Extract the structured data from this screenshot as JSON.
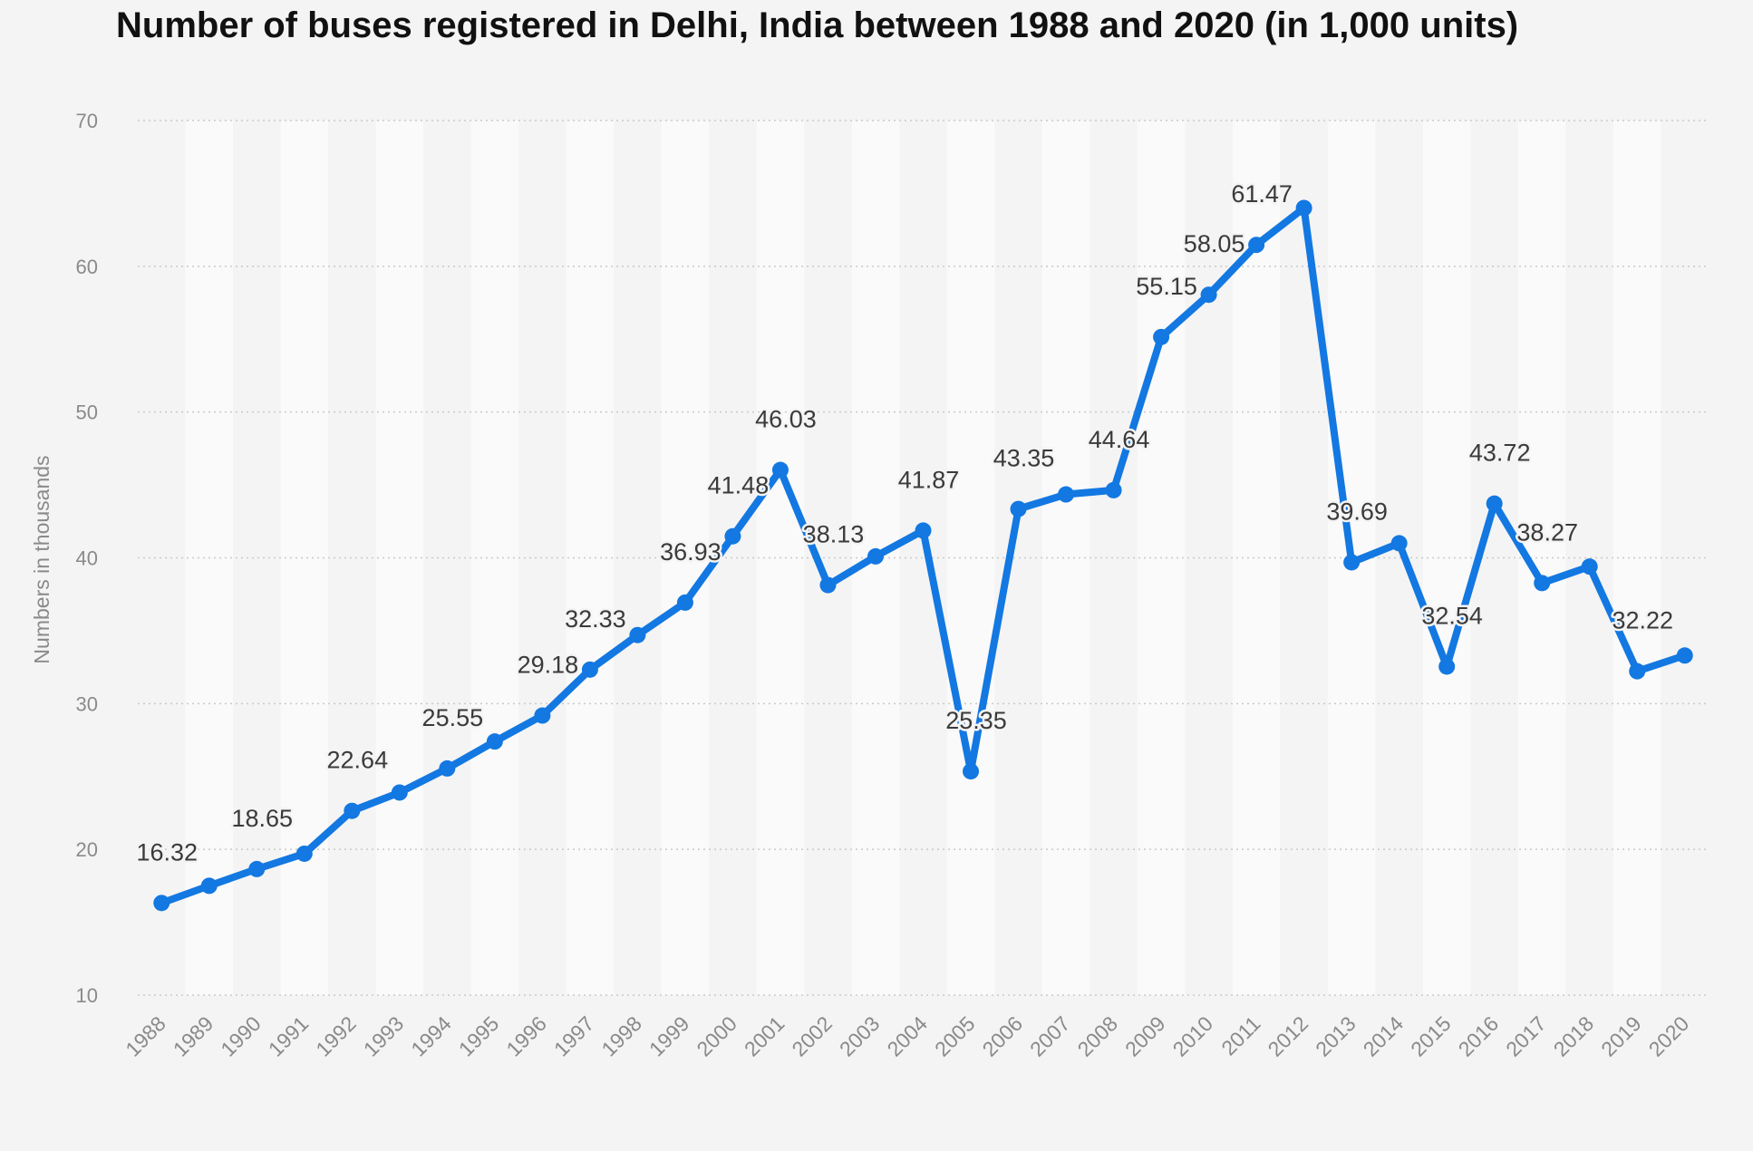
{
  "title": "Number of buses registered in Delhi, India between 1988 and 2020 (in 1,000 units)",
  "chart_data": {
    "type": "line",
    "title": "Number of buses registered in Delhi, India between 1988 and 2020 (in 1,000 units)",
    "xlabel": "",
    "ylabel": "Numbers in thousands",
    "ylim": [
      10,
      70
    ],
    "yticks": [
      10,
      20,
      30,
      40,
      50,
      60,
      70
    ],
    "grid": true,
    "line_color": "#1378e1",
    "categories": [
      "1988",
      "1989",
      "1990",
      "1991",
      "1992",
      "1993",
      "1994",
      "1995",
      "1996",
      "1997",
      "1998",
      "1999",
      "2000",
      "2001",
      "2002",
      "2003",
      "2004",
      "2005",
      "2006",
      "2007",
      "2008",
      "2009",
      "2010",
      "2011",
      "2012",
      "2013",
      "2014",
      "2015",
      "2016",
      "2017",
      "2018",
      "2019",
      "2020"
    ],
    "series": [
      {
        "values": [
          16.32,
          17.5,
          18.65,
          19.7,
          22.64,
          23.9,
          25.55,
          27.4,
          29.18,
          32.33,
          34.7,
          36.93,
          41.48,
          46.03,
          38.13,
          40.1,
          41.87,
          25.35,
          43.35,
          44.35,
          44.64,
          55.15,
          58.05,
          61.47,
          64.0,
          39.69,
          41.0,
          32.54,
          43.72,
          38.27,
          39.4,
          32.22,
          33.3
        ]
      }
    ],
    "data_labels": [
      {
        "category": "1988",
        "text": "16.32"
      },
      {
        "category": "1990",
        "text": "18.65"
      },
      {
        "category": "1992",
        "text": "22.64"
      },
      {
        "category": "1994",
        "text": "25.55"
      },
      {
        "category": "1996",
        "text": "29.18"
      },
      {
        "category": "1997",
        "text": "32.33"
      },
      {
        "category": "1999",
        "text": "36.93"
      },
      {
        "category": "2000",
        "text": "41.48"
      },
      {
        "category": "2001",
        "text": "46.03"
      },
      {
        "category": "2002",
        "text": "38.13"
      },
      {
        "category": "2004",
        "text": "41.87"
      },
      {
        "category": "2005",
        "text": "25.35"
      },
      {
        "category": "2006",
        "text": "43.35"
      },
      {
        "category": "2008",
        "text": "44.64"
      },
      {
        "category": "2009",
        "text": "55.15"
      },
      {
        "category": "2010",
        "text": "58.05"
      },
      {
        "category": "2011",
        "text": "61.47"
      },
      {
        "category": "2013",
        "text": "39.69"
      },
      {
        "category": "2015",
        "text": "32.54"
      },
      {
        "category": "2016",
        "text": "43.72"
      },
      {
        "category": "2017",
        "text": "38.27"
      },
      {
        "category": "2019",
        "text": "32.22"
      }
    ]
  }
}
